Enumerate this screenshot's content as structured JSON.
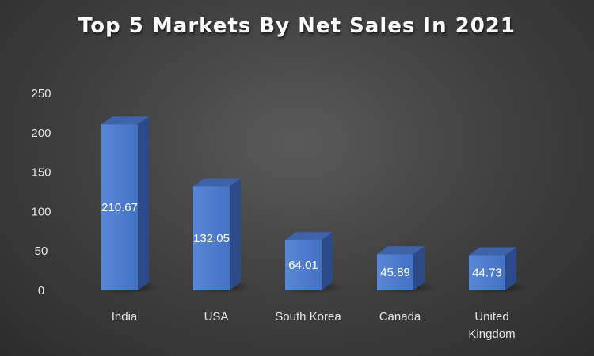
{
  "chart_data": {
    "type": "bar",
    "title": "Top 5 Markets By Net Sales In 2021",
    "categories": [
      "India",
      "USA",
      "South Korea",
      "Canada",
      "United Kingdom"
    ],
    "values": [
      210.67,
      132.05,
      64.01,
      45.89,
      44.73
    ],
    "data_labels": [
      "210.67",
      "132.05",
      "64.01",
      "45.89",
      "44.73"
    ],
    "yticks": [
      "0",
      "50",
      "100",
      "150",
      "200",
      "250"
    ],
    "ylim": [
      0,
      250
    ],
    "xlabel": "",
    "ylabel": "",
    "grid": false,
    "legend": "none",
    "style": "3d-column"
  },
  "colors": {
    "bar_front": "#4472c4",
    "bar_front_light": "#5b86d6",
    "bar_top": "#3f63a8",
    "bar_side": "#2b4a87",
    "background": "#404040"
  }
}
